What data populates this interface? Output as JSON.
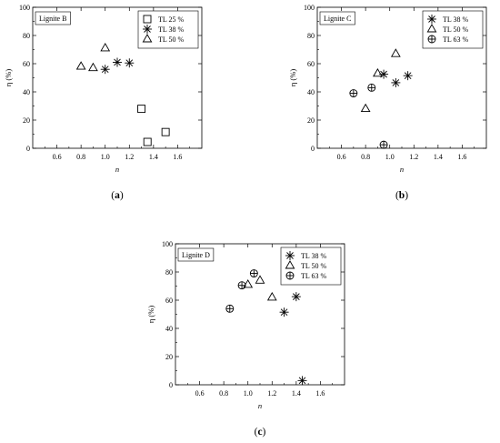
{
  "chart_data": [
    {
      "type": "scatter",
      "panel_label": "(a)",
      "panel_letter": "a",
      "annotation": "Lignite B",
      "xlabel": "n",
      "ylabel": "η (%)",
      "xlim": [
        0.4,
        1.8
      ],
      "ylim": [
        0,
        100
      ],
      "xticks": [
        "0.6",
        "0.8",
        "1.0",
        "1.2",
        "1.4",
        "1.6"
      ],
      "yticks": [
        "0",
        "20",
        "40",
        "60",
        "80",
        "100"
      ],
      "grid": false,
      "legend_position": "top-right",
      "series": [
        {
          "name": "TL 25 %",
          "marker": "square",
          "points": [
            [
              1.3,
              28
            ],
            [
              1.35,
              4.5
            ],
            [
              1.5,
              11.5
            ]
          ]
        },
        {
          "name": "TL 38 %",
          "marker": "asterisk",
          "points": [
            [
              1.0,
              56
            ],
            [
              1.1,
              61
            ],
            [
              1.2,
              60.5
            ]
          ]
        },
        {
          "name": "TL 50 %",
          "marker": "triangle",
          "points": [
            [
              0.8,
              58
            ],
            [
              0.9,
              57
            ],
            [
              1.0,
              71
            ]
          ]
        }
      ]
    },
    {
      "type": "scatter",
      "panel_label": "(b)",
      "panel_letter": "b",
      "annotation": "Lignite C",
      "xlabel": "n",
      "ylabel": "η (%)",
      "xlim": [
        0.4,
        1.8
      ],
      "ylim": [
        0,
        100
      ],
      "xticks": [
        "0.6",
        "0.8",
        "1.0",
        "1.2",
        "1.4",
        "1.6"
      ],
      "yticks": [
        "0",
        "20",
        "40",
        "60",
        "80",
        "100"
      ],
      "grid": false,
      "legend_position": "top-right",
      "series": [
        {
          "name": "TL 38 %",
          "marker": "asterisk",
          "points": [
            [
              0.95,
              52.5
            ],
            [
              1.05,
              46.5
            ],
            [
              1.15,
              51.5
            ]
          ]
        },
        {
          "name": "TL 50 %",
          "marker": "triangle",
          "points": [
            [
              0.8,
              28
            ],
            [
              0.9,
              53
            ],
            [
              1.05,
              67
            ]
          ]
        },
        {
          "name": "TL 63 %",
          "marker": "circle-plus",
          "points": [
            [
              0.7,
              39
            ],
            [
              0.85,
              43
            ],
            [
              0.95,
              2.5
            ]
          ]
        }
      ]
    },
    {
      "type": "scatter",
      "panel_label": "(c)",
      "panel_letter": "c",
      "annotation": "Lignite D",
      "xlabel": "n",
      "ylabel": "η (%)",
      "xlim": [
        0.4,
        1.8
      ],
      "ylim": [
        0,
        100
      ],
      "xticks": [
        "0.6",
        "0.8",
        "1.0",
        "1.2",
        "1.4",
        "1.6"
      ],
      "yticks": [
        "0",
        "20",
        "40",
        "60",
        "80",
        "100"
      ],
      "grid": false,
      "legend_position": "top-right",
      "series": [
        {
          "name": "TL 38 %",
          "marker": "asterisk",
          "points": [
            [
              1.3,
              51.5
            ],
            [
              1.4,
              62.5
            ],
            [
              1.45,
              3
            ]
          ]
        },
        {
          "name": "TL 50 %",
          "marker": "triangle",
          "points": [
            [
              1.0,
              71
            ],
            [
              1.1,
              74
            ],
            [
              1.2,
              62
            ]
          ]
        },
        {
          "name": "TL 63 %",
          "marker": "circle-plus",
          "points": [
            [
              0.85,
              54
            ],
            [
              0.95,
              70.5
            ],
            [
              1.05,
              79
            ]
          ]
        }
      ]
    }
  ]
}
